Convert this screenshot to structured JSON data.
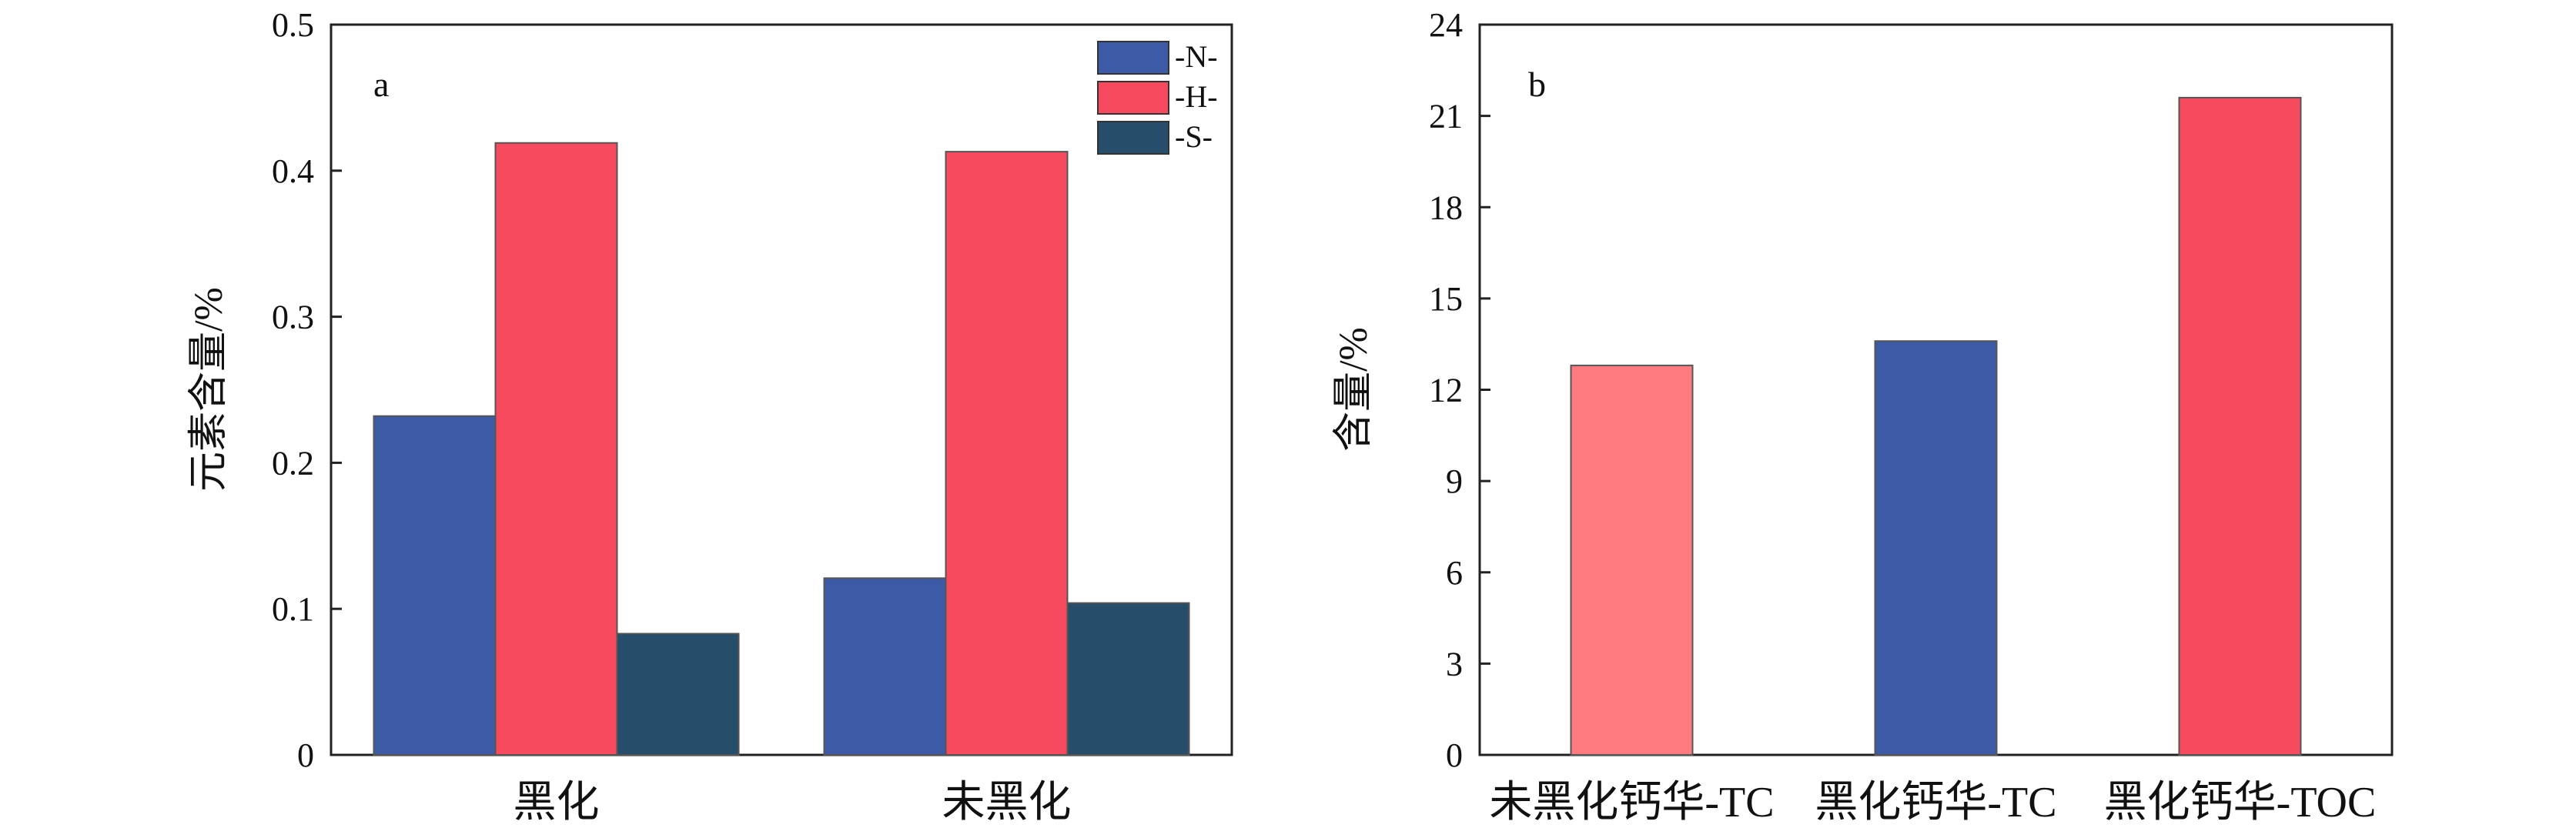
{
  "chart_data": [
    {
      "panel_letter": "a",
      "type": "bar",
      "categories": [
        "黑化",
        "未黑化"
      ],
      "series": [
        {
          "name": "-N-",
          "values": [
            0.232,
            0.121
          ],
          "color": "#3c5aa5"
        },
        {
          "name": "-H-",
          "values": [
            0.419,
            0.413
          ],
          "color": "#f84a5e"
        },
        {
          "name": "-S-",
          "values": [
            0.083,
            0.104
          ],
          "color": "#264e6a"
        }
      ],
      "ylabel": "元素含量/%",
      "xlabel": "",
      "ylim": [
        0,
        0.5
      ],
      "yticks": [
        "0",
        "0.1",
        "0.2",
        "0.3",
        "0.4",
        "0.5"
      ],
      "legend_position": "top-right",
      "grid": false
    },
    {
      "panel_letter": "b",
      "type": "bar",
      "categories": [
        "未黑化钙华-TC",
        "黑化钙华-TC",
        "黑化钙华-TOC"
      ],
      "values": [
        12.8,
        13.6,
        21.6
      ],
      "colors": [
        "#ff7b80",
        "#3c5aa5",
        "#f84a5e"
      ],
      "ylabel": "含量/%",
      "xlabel": "",
      "ylim": [
        0,
        24
      ],
      "yticks": [
        "0",
        "3",
        "6",
        "9",
        "12",
        "15",
        "18",
        "21",
        "24"
      ],
      "grid": false
    }
  ]
}
